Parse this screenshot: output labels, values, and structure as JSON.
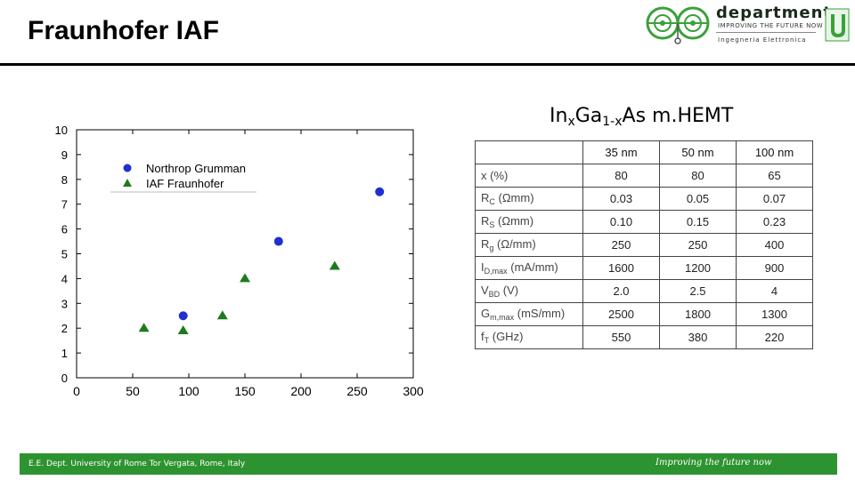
{
  "header": {
    "title": "Fraunhofer IAF"
  },
  "logo": {
    "word": "department",
    "tagline": "IMPROVING THE FUTURE NOW",
    "subtitle": "Ingegneria Elettronica",
    "icon": "department-logo-circuit-icon",
    "accent_color": "#3aa13a"
  },
  "table": {
    "title_prefix": "In",
    "title_x1": "x",
    "title_mid": "Ga",
    "title_x2": "1-x",
    "title_suffix": "As m.HEMT",
    "columns": [
      "35 nm",
      "50 nm",
      "100 nm"
    ],
    "rows": [
      {
        "label": "x (%)",
        "label_sub": "",
        "label_unit": "",
        "values": [
          "80",
          "80",
          "65"
        ]
      },
      {
        "label": "R",
        "label_sub": "C",
        "label_unit": " (Ωmm)",
        "values": [
          "0.03",
          "0.05",
          "0.07"
        ]
      },
      {
        "label": "R",
        "label_sub": "S",
        "label_unit": " (Ωmm)",
        "values": [
          "0.10",
          "0.15",
          "0.23"
        ]
      },
      {
        "label": "R",
        "label_sub": "g",
        "label_unit": " (Ω/mm)",
        "values": [
          "250",
          "250",
          "400"
        ]
      },
      {
        "label": "I",
        "label_sub": "D,max",
        "label_unit": " (mA/mm)",
        "values": [
          "1600",
          "1200",
          "900"
        ]
      },
      {
        "label": "V",
        "label_sub": "BD",
        "label_unit": " (V)",
        "values": [
          "2.0",
          "2.5",
          "4"
        ]
      },
      {
        "label": "G",
        "label_sub": "m,max",
        "label_unit": " (mS/mm)",
        "values": [
          "2500",
          "1800",
          "1300"
        ]
      },
      {
        "label": "f",
        "label_sub": "T",
        "label_unit": " (GHz)",
        "values": [
          "550",
          "380",
          "220"
        ]
      }
    ]
  },
  "chart_data": {
    "type": "scatter",
    "title": "",
    "xlabel": "",
    "ylabel": "",
    "xlim": [
      0,
      300
    ],
    "ylim": [
      0,
      10
    ],
    "x_ticks": [
      0,
      50,
      100,
      150,
      200,
      250,
      300
    ],
    "y_ticks": [
      0,
      1,
      2,
      3,
      4,
      5,
      6,
      7,
      8,
      9,
      10
    ],
    "grid": false,
    "legend_position": "top-left",
    "series": [
      {
        "name": "Northrop Grumman",
        "marker": "circle",
        "color": "#1f2fd0",
        "points": [
          [
            95,
            2.5
          ],
          [
            180,
            5.5
          ],
          [
            270,
            7.5
          ]
        ]
      },
      {
        "name": "IAF Fraunhofer",
        "marker": "triangle",
        "color": "#1e7a1e",
        "points": [
          [
            60,
            2.0
          ],
          [
            95,
            1.9
          ],
          [
            130,
            2.5
          ],
          [
            150,
            4.0
          ],
          [
            230,
            4.5
          ]
        ]
      }
    ]
  },
  "footer": {
    "left": "E.E. Dept. University of Rome Tor Vergata, Rome, Italy",
    "right": "Improving the future now",
    "color": "#2d9330"
  }
}
